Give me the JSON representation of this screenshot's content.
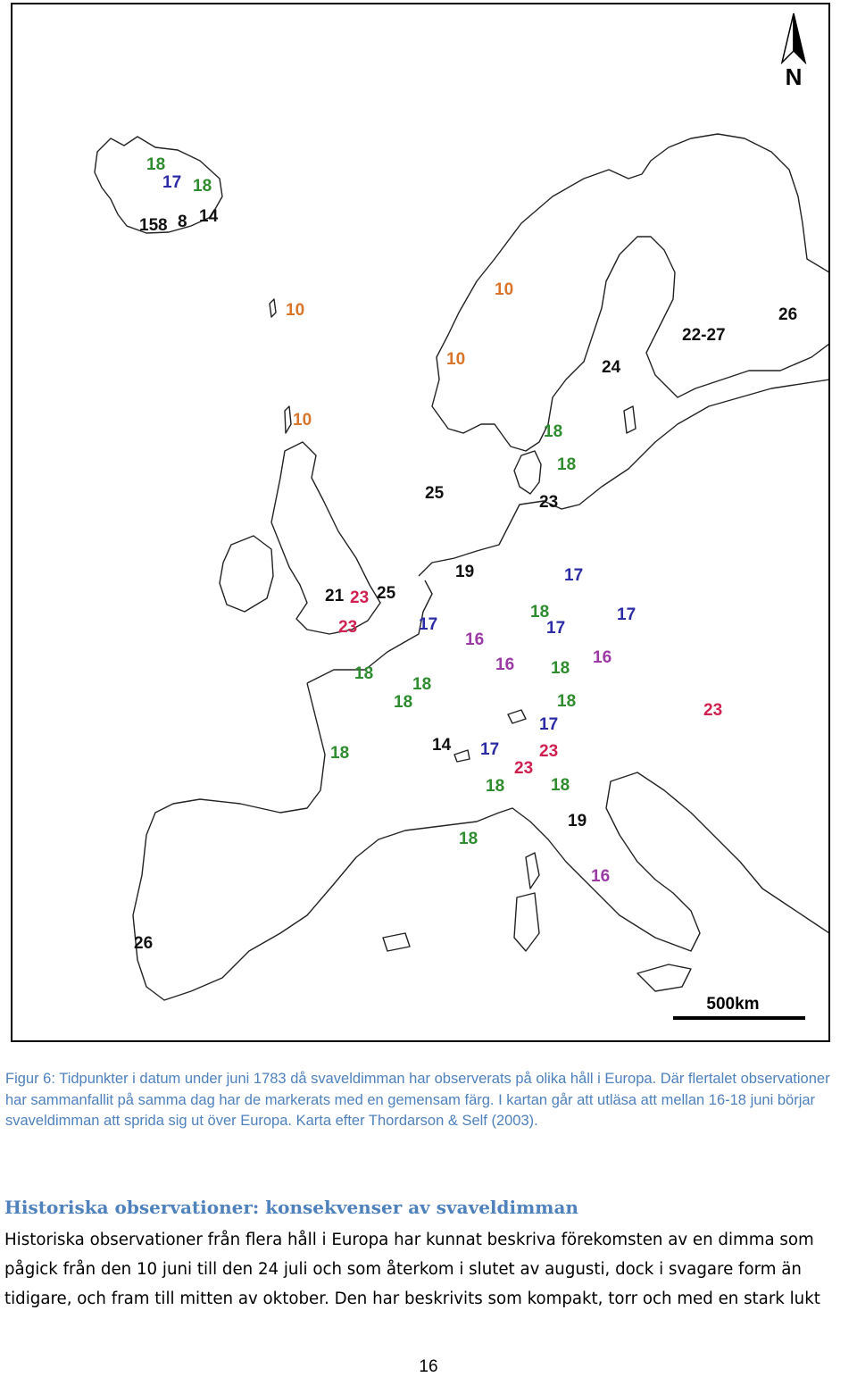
{
  "map": {
    "north_label": "N",
    "scale_label": "500km",
    "colors": {
      "black": "#111111",
      "green": "#2e8b2e",
      "blue": "#2b2ba6",
      "orange": "#d9742a",
      "red": "#d02050",
      "purple": "#9b3aa5"
    },
    "labels": [
      {
        "text": "18",
        "color": "green"
      },
      {
        "text": "17",
        "color": "blue"
      },
      {
        "text": "18",
        "color": "green"
      },
      {
        "text": "15",
        "color": "black"
      },
      {
        "text": "8",
        "color": "black"
      },
      {
        "text": "8",
        "color": "black"
      },
      {
        "text": "14",
        "color": "black"
      },
      {
        "text": "10",
        "color": "orange"
      },
      {
        "text": "10",
        "color": "orange"
      },
      {
        "text": "10",
        "color": "orange"
      },
      {
        "text": "10",
        "color": "orange"
      },
      {
        "text": "26",
        "color": "black"
      },
      {
        "text": "22-27",
        "color": "black"
      },
      {
        "text": "24",
        "color": "black"
      },
      {
        "text": "18",
        "color": "green"
      },
      {
        "text": "18",
        "color": "green"
      },
      {
        "text": "25",
        "color": "black"
      },
      {
        "text": "23",
        "color": "black"
      },
      {
        "text": "19",
        "color": "black"
      },
      {
        "text": "17",
        "color": "blue"
      },
      {
        "text": "21",
        "color": "black"
      },
      {
        "text": "23",
        "color": "red"
      },
      {
        "text": "25",
        "color": "black"
      },
      {
        "text": "23",
        "color": "red"
      },
      {
        "text": "17",
        "color": "blue"
      },
      {
        "text": "18",
        "color": "green"
      },
      {
        "text": "17",
        "color": "blue"
      },
      {
        "text": "17",
        "color": "blue"
      },
      {
        "text": "16",
        "color": "purple"
      },
      {
        "text": "16",
        "color": "purple"
      },
      {
        "text": "18",
        "color": "green"
      },
      {
        "text": "16",
        "color": "purple"
      },
      {
        "text": "18",
        "color": "green"
      },
      {
        "text": "18",
        "color": "green"
      },
      {
        "text": "18",
        "color": "green"
      },
      {
        "text": "18",
        "color": "green"
      },
      {
        "text": "23",
        "color": "red"
      },
      {
        "text": "17",
        "color": "blue"
      },
      {
        "text": "18",
        "color": "green"
      },
      {
        "text": "14",
        "color": "black"
      },
      {
        "text": "17",
        "color": "blue"
      },
      {
        "text": "23",
        "color": "red"
      },
      {
        "text": "23",
        "color": "red"
      },
      {
        "text": "18",
        "color": "green"
      },
      {
        "text": "18",
        "color": "green"
      },
      {
        "text": "19",
        "color": "black"
      },
      {
        "text": "18",
        "color": "green"
      },
      {
        "text": "16",
        "color": "purple"
      },
      {
        "text": "26",
        "color": "black"
      }
    ]
  },
  "caption": "Figur 6: Tidpunkter i datum under juni 1783 då svaveldimman har observerats på olika håll i Europa. Där flertalet observationer har sammanfallit på samma dag har de markerats med en gemensam färg. I kartan går att utläsa att mellan 16-18 juni börjar svaveldimman att sprida sig ut över Europa. Karta efter Thordarson & Self (2003).",
  "heading": "Historiska observationer: konsekvenser av svaveldimman",
  "body_lines": [
    "Historiska observationer från flera håll i Europa har kunnat beskriva förekomsten av en dimma som",
    "pågick från den 10 juni till den 24 juli och som återkom i slutet av augusti, dock i svagare form än",
    "tidigare, och fram till mitten av oktober. Den har beskrivits som kompakt, torr och med en stark lukt"
  ],
  "page_number": "16"
}
